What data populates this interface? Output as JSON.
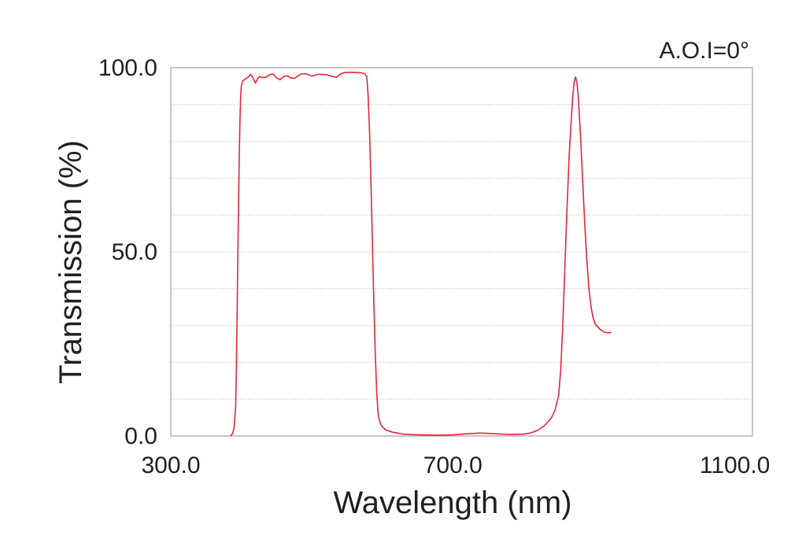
{
  "chart_data": {
    "type": "line",
    "title": "",
    "annotation": "A.O.I=0°",
    "xlabel": "Wavelength (nm)",
    "ylabel": "Transmission (%)",
    "xlim": [
      300,
      1125
    ],
    "ylim": [
      0,
      100
    ],
    "x_ticks": [
      {
        "value": 300,
        "label": "300.0"
      },
      {
        "value": 700,
        "label": "700.0"
      },
      {
        "value": 1100,
        "label": "1100.0"
      }
    ],
    "y_ticks": [
      {
        "value": 0,
        "label": "0.0"
      },
      {
        "value": 50,
        "label": "50.0"
      },
      {
        "value": 100,
        "label": "100.0"
      }
    ],
    "grid": true,
    "grid_y": [
      10,
      20,
      30,
      40,
      50,
      60,
      70,
      80,
      90
    ],
    "line_color": "#e3263b",
    "series": [
      {
        "name": "",
        "points": [
          [
            385,
            0
          ],
          [
            388,
            0.8
          ],
          [
            390,
            2.5
          ],
          [
            392,
            8
          ],
          [
            393,
            18
          ],
          [
            394,
            32
          ],
          [
            395,
            48
          ],
          [
            396,
            62
          ],
          [
            397,
            75
          ],
          [
            398,
            85
          ],
          [
            399,
            92
          ],
          [
            400,
            95
          ],
          [
            402,
            96.5
          ],
          [
            405,
            96.8
          ],
          [
            410,
            97.5
          ],
          [
            413,
            98.2
          ],
          [
            416,
            97.5
          ],
          [
            420,
            95.8
          ],
          [
            423,
            97
          ],
          [
            426,
            97.6
          ],
          [
            430,
            97.3
          ],
          [
            435,
            97.4
          ],
          [
            440,
            98.1
          ],
          [
            445,
            98.3
          ],
          [
            450,
            97.2
          ],
          [
            455,
            96.7
          ],
          [
            460,
            97.6
          ],
          [
            465,
            97.8
          ],
          [
            470,
            97.2
          ],
          [
            475,
            97.1
          ],
          [
            480,
            97.7
          ],
          [
            485,
            98.3
          ],
          [
            490,
            98.4
          ],
          [
            495,
            98.1
          ],
          [
            500,
            97.7
          ],
          [
            505,
            98.0
          ],
          [
            510,
            98.2
          ],
          [
            520,
            98.1
          ],
          [
            530,
            97.6
          ],
          [
            535,
            97.4
          ],
          [
            540,
            98.2
          ],
          [
            545,
            98.6
          ],
          [
            550,
            98.7
          ],
          [
            560,
            98.7
          ],
          [
            570,
            98.6
          ],
          [
            575,
            98.4
          ],
          [
            578,
            97.5
          ],
          [
            580,
            92
          ],
          [
            582,
            82
          ],
          [
            584,
            68
          ],
          [
            586,
            52
          ],
          [
            588,
            36
          ],
          [
            590,
            22
          ],
          [
            592,
            12
          ],
          [
            594,
            6
          ],
          [
            597,
            3.5
          ],
          [
            600,
            2.5
          ],
          [
            605,
            1.6
          ],
          [
            615,
            1.0
          ],
          [
            630,
            0.5
          ],
          [
            650,
            0.3
          ],
          [
            680,
            0.2
          ],
          [
            700,
            0.3
          ],
          [
            720,
            0.6
          ],
          [
            740,
            0.8
          ],
          [
            760,
            0.6
          ],
          [
            780,
            0.4
          ],
          [
            800,
            0.5
          ],
          [
            810,
            0.8
          ],
          [
            820,
            1.5
          ],
          [
            830,
            2.8
          ],
          [
            840,
            5
          ],
          [
            845,
            7
          ],
          [
            850,
            11
          ],
          [
            853,
            18
          ],
          [
            856,
            30
          ],
          [
            859,
            46
          ],
          [
            862,
            62
          ],
          [
            865,
            76
          ],
          [
            868,
            86
          ],
          [
            870,
            92
          ],
          [
            872,
            96
          ],
          [
            874,
            97.5
          ],
          [
            876,
            96
          ],
          [
            878,
            92
          ],
          [
            881,
            82
          ],
          [
            884,
            70
          ],
          [
            887,
            58
          ],
          [
            890,
            48
          ],
          [
            893,
            40
          ],
          [
            896,
            35
          ],
          [
            899,
            32
          ],
          [
            902,
            30.5
          ],
          [
            906,
            29.5
          ],
          [
            910,
            28.8
          ],
          [
            915,
            28.2
          ],
          [
            920,
            28.0
          ],
          [
            925,
            28.2
          ]
        ]
      }
    ]
  }
}
